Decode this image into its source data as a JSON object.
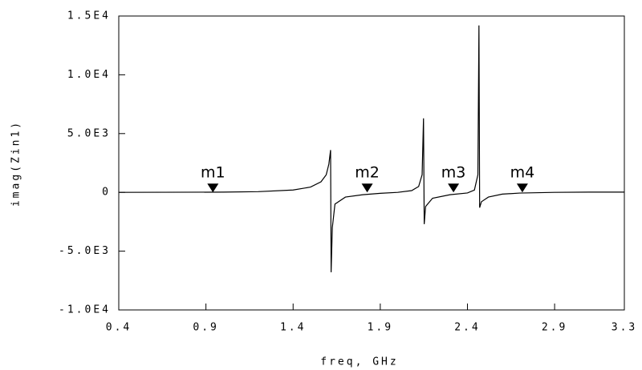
{
  "chart_data": {
    "type": "line",
    "x_label": "freq, GHz",
    "y_label": "imag(Zin1)",
    "x": [
      0.4,
      1.0,
      1.2,
      1.4,
      1.5,
      1.56,
      1.59,
      1.605,
      1.615,
      1.618,
      1.625,
      1.64,
      1.7,
      1.8,
      1.9,
      2.0,
      2.08,
      2.12,
      2.14,
      2.148,
      2.152,
      2.16,
      2.2,
      2.3,
      2.4,
      2.44,
      2.46,
      2.466,
      2.47,
      2.48,
      2.52,
      2.6,
      2.7,
      2.9,
      3.1,
      3.3
    ],
    "series": [
      {
        "name": "imag(Zin1)",
        "color": "#000000",
        "values": [
          0,
          20,
          60,
          200,
          450,
          900,
          1500,
          2400,
          3600,
          -6800,
          -3000,
          -1000,
          -400,
          -200,
          -80,
          0,
          150,
          500,
          1500,
          6300,
          -2700,
          -1200,
          -500,
          -200,
          -50,
          200,
          1500,
          14200,
          -1300,
          -800,
          -400,
          -150,
          -60,
          0,
          20,
          20
        ]
      }
    ],
    "markers": [
      {
        "name": "m1",
        "x": 0.94,
        "y": 0
      },
      {
        "name": "m2",
        "x": 1.825,
        "y": 0
      },
      {
        "name": "m3",
        "x": 2.32,
        "y": 0
      },
      {
        "name": "m4",
        "x": 2.715,
        "y": 0
      }
    ],
    "xlim": [
      0.4,
      3.3
    ],
    "xticks": [
      0.4,
      0.9,
      1.4,
      1.9,
      2.4,
      2.9,
      3.3
    ],
    "ylim": [
      -10000,
      15000
    ],
    "yticks": [
      {
        "value": -10000,
        "label": "-1.0E4"
      },
      {
        "value": -5000,
        "label": "-5.0E3"
      },
      0,
      {
        "value": 5000,
        "label": "5.0E3"
      },
      {
        "value": 10000,
        "label": "1.0E4"
      },
      {
        "value": 15000,
        "label": "1.5E4"
      }
    ]
  }
}
